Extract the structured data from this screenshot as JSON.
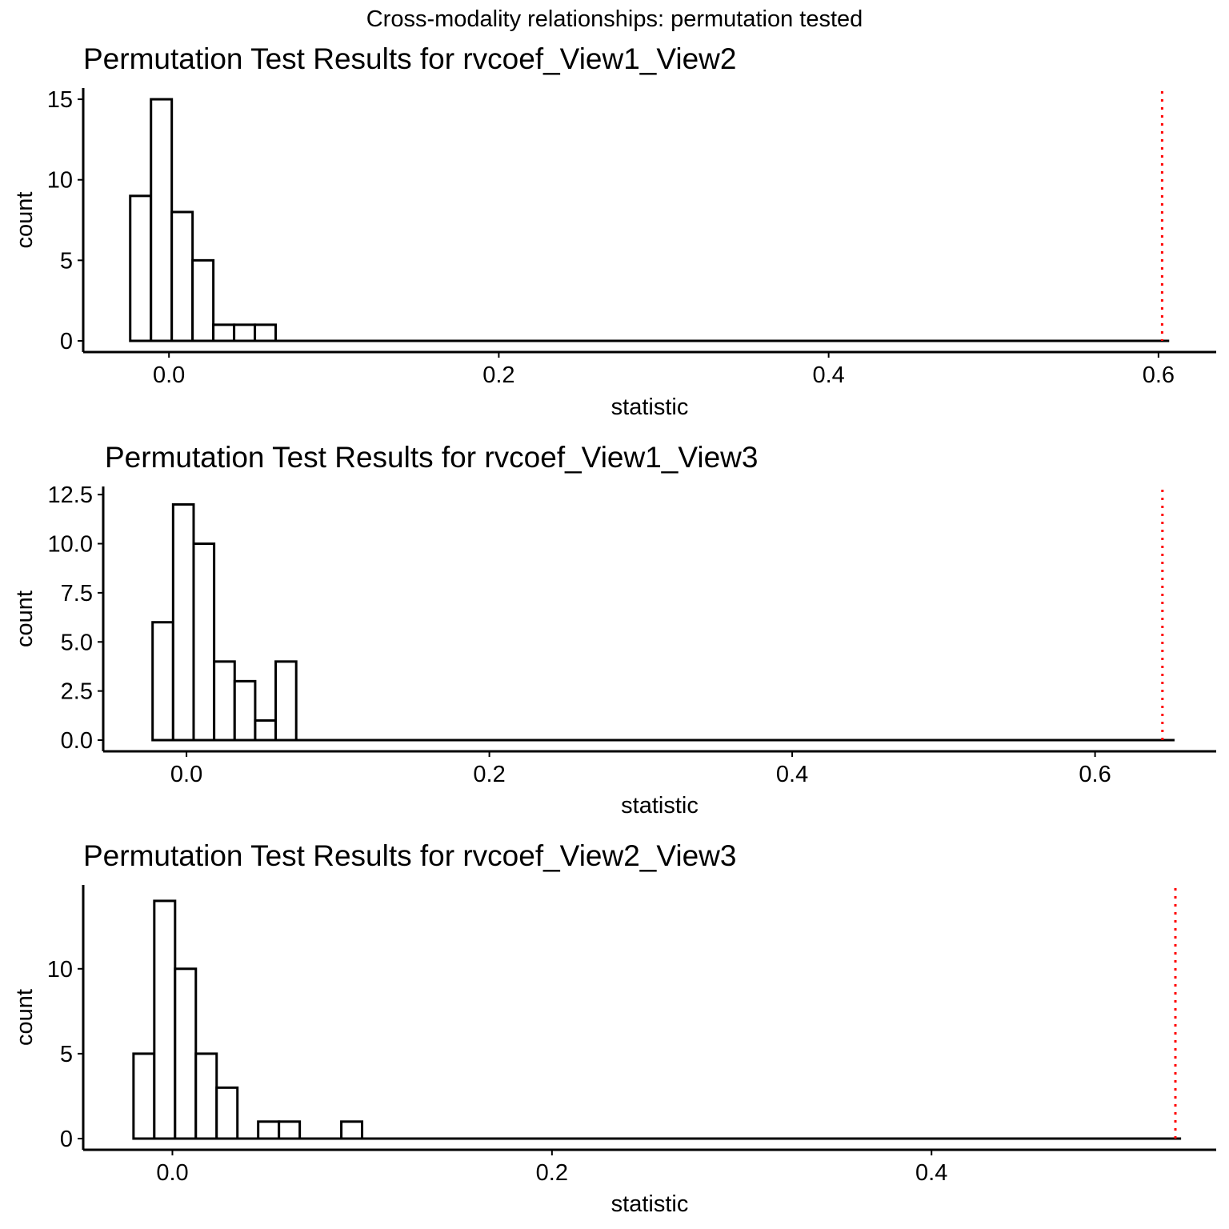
{
  "figure": {
    "title": "Cross-modality relationships: permutation tested"
  },
  "chart_data": [
    {
      "type": "bar",
      "title": "Permutation Test Results for rvcoef_View1_View2",
      "xlabel": "statistic",
      "ylabel": "count",
      "xlim": [
        -0.052,
        0.635
      ],
      "ylim": [
        0,
        15.5
      ],
      "xticks": [
        0.0,
        0.2,
        0.4,
        0.6
      ],
      "xtick_labels": [
        "0.0",
        "0.2",
        "0.4",
        "0.6"
      ],
      "yticks": [
        0,
        5,
        10,
        15
      ],
      "ytick_labels": [
        "0",
        "5",
        "10",
        "15"
      ],
      "bin_width": 0.0126,
      "bins_start": -0.0235,
      "counts": [
        9,
        15,
        8,
        5,
        1,
        1,
        1
      ],
      "baseline_end": 0.6065,
      "observed_value": 0.6022,
      "observed_line_color": "#ff0000",
      "grid": false
    },
    {
      "type": "bar",
      "title": "Permutation Test Results for rvcoef_View1_View3",
      "xlabel": "statistic",
      "ylabel": "count",
      "xlim": [
        -0.055,
        0.68
      ],
      "ylim": [
        0,
        12.75
      ],
      "xticks": [
        0.0,
        0.2,
        0.4,
        0.6
      ],
      "xtick_labels": [
        "0.0",
        "0.2",
        "0.4",
        "0.6"
      ],
      "yticks": [
        0,
        2.5,
        5,
        7.5,
        10,
        12.5
      ],
      "ytick_labels": [
        "0.0",
        "2.5",
        "5.0",
        "7.5",
        "10.0",
        "12.5"
      ],
      "bin_width": 0.01355,
      "bins_start": -0.0224,
      "counts": [
        6,
        12,
        10,
        4,
        3,
        1,
        4
      ],
      "baseline_end": 0.6525,
      "observed_value": 0.6445,
      "observed_line_color": "#ff0000",
      "grid": false
    },
    {
      "type": "bar",
      "title": "Permutation Test Results for rvcoef_View2_View3",
      "xlabel": "statistic",
      "ylabel": "count",
      "xlim": [
        -0.047,
        0.55
      ],
      "ylim": [
        0,
        14.75
      ],
      "xticks": [
        0.0,
        0.2,
        0.4
      ],
      "xtick_labels": [
        "0.0",
        "0.2",
        "0.4"
      ],
      "yticks": [
        0,
        5,
        10
      ],
      "ytick_labels": [
        "0",
        "5",
        "10"
      ],
      "bin_width": 0.01095,
      "bins_start": -0.0205,
      "counts": [
        5,
        14,
        10,
        5,
        3,
        0,
        1,
        1,
        0,
        0,
        1
      ],
      "baseline_end": 0.5315,
      "observed_value": 0.5285,
      "observed_line_color": "#ff0000",
      "grid": false
    }
  ]
}
